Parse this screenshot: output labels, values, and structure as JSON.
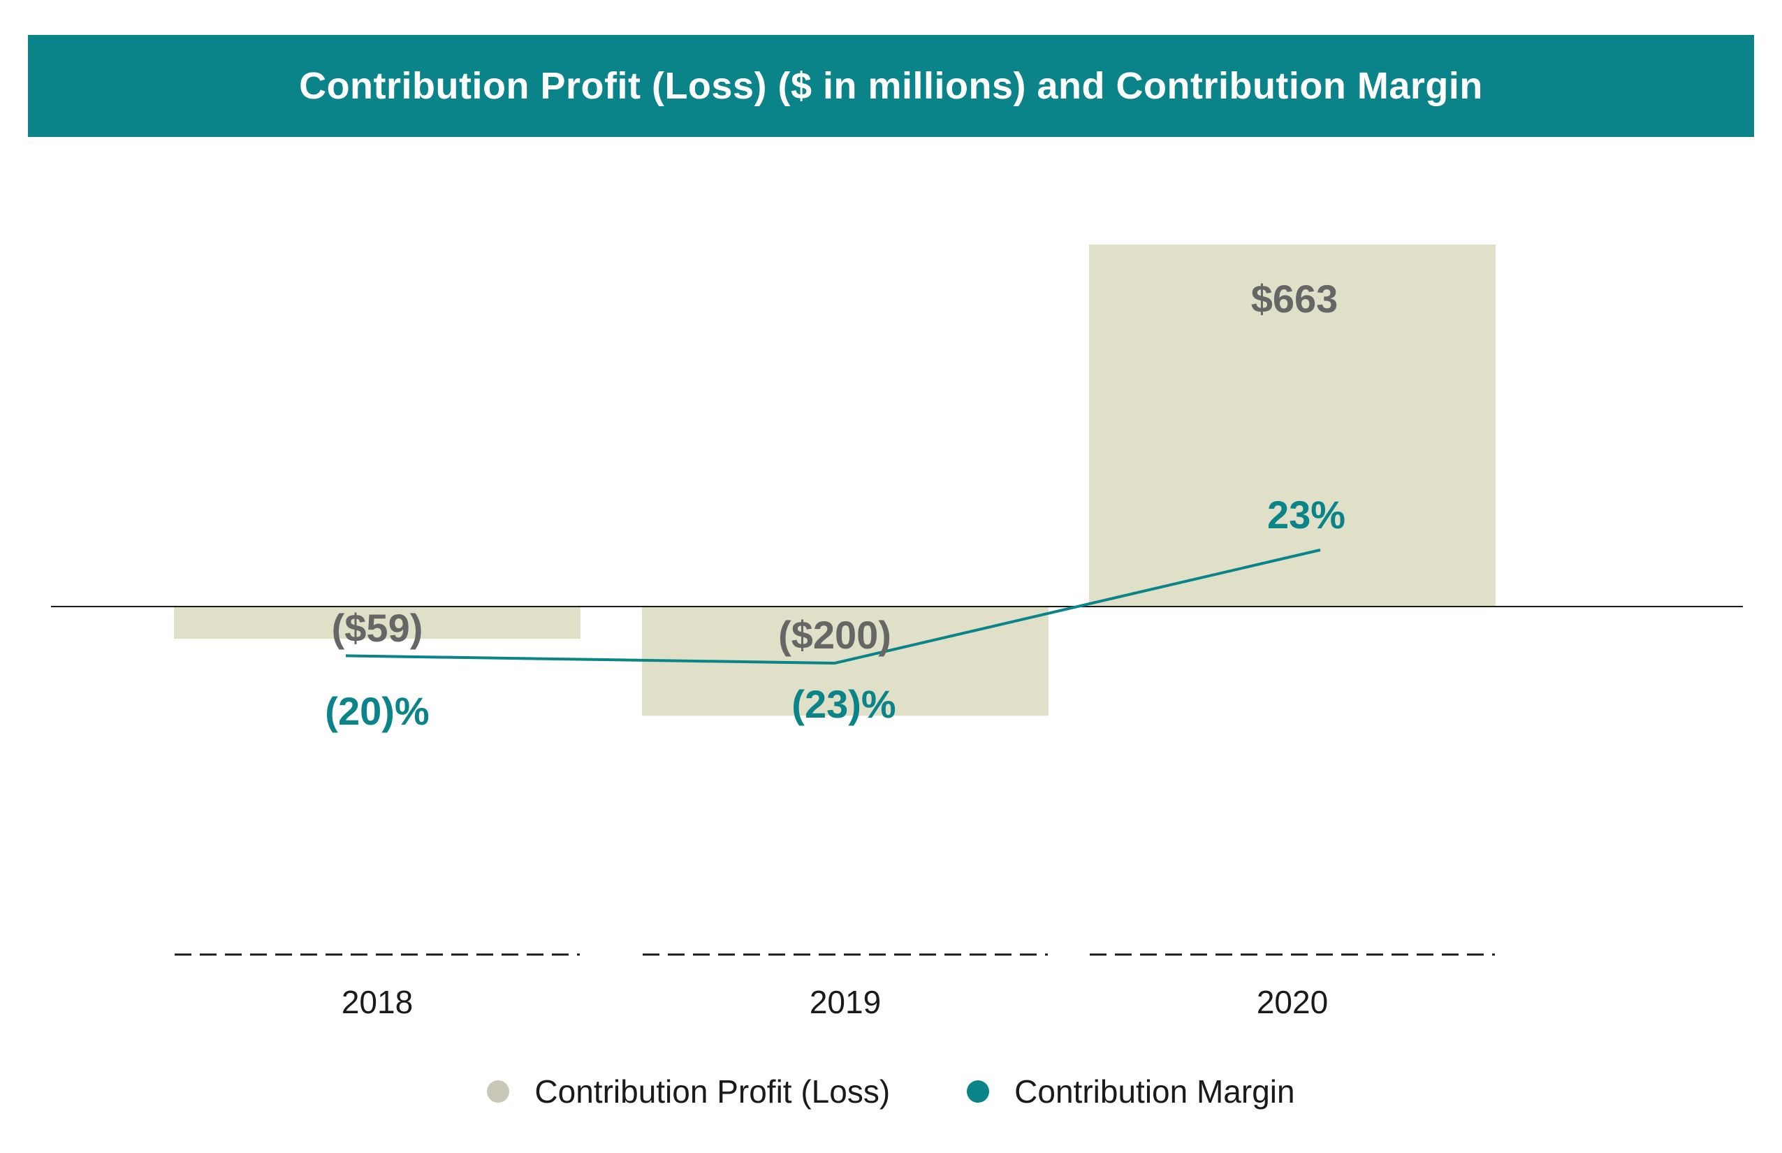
{
  "chart_data": {
    "type": "bar",
    "title": "Contribution Profit (Loss) ($ in millions) and Contribution Margin",
    "categories": [
      "2018",
      "2019",
      "2020"
    ],
    "series": [
      {
        "name": "Contribution Profit (Loss)",
        "kind": "bar",
        "color": "#e0e0c8",
        "values": [
          -59,
          -200,
          663
        ],
        "labels": [
          "($59)",
          "($200)",
          "$663"
        ]
      },
      {
        "name": "Contribution Margin",
        "kind": "line",
        "color": "#0a8488",
        "values": [
          -20,
          -23,
          23
        ],
        "labels": [
          "(20)%",
          "(23)%",
          "23%"
        ]
      }
    ],
    "ylim": [
      -540,
      700
    ],
    "margin_ylim": [
      -23,
      23
    ],
    "xlabel": "",
    "ylabel": "",
    "grid": false,
    "legend_position": "bottom-center",
    "legend_dot_color_bar": "#c9c8b8"
  }
}
